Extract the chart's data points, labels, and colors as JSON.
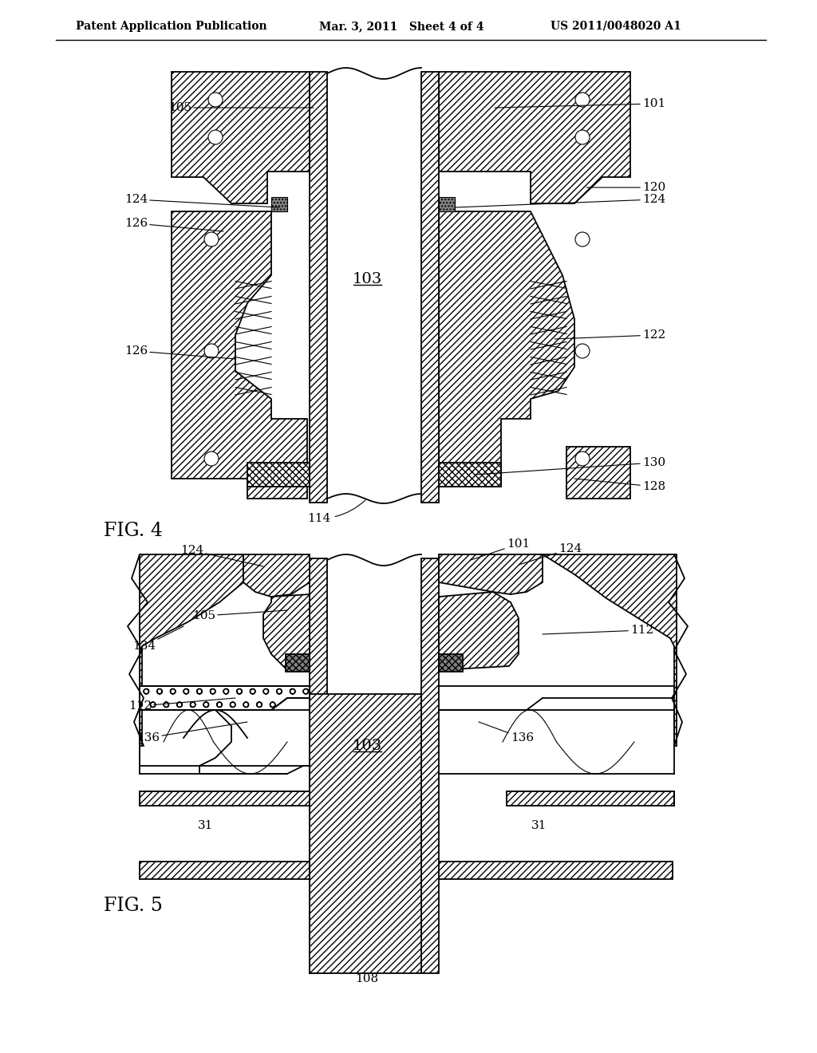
{
  "bg_color": "#ffffff",
  "line_color": "#000000",
  "header_left": "Patent Application Publication",
  "header_mid": "Mar. 3, 2011   Sheet 4 of 4",
  "header_right": "US 2011/0048020 A1",
  "fig4_label": "FIG. 4",
  "fig5_label": "FIG. 5"
}
